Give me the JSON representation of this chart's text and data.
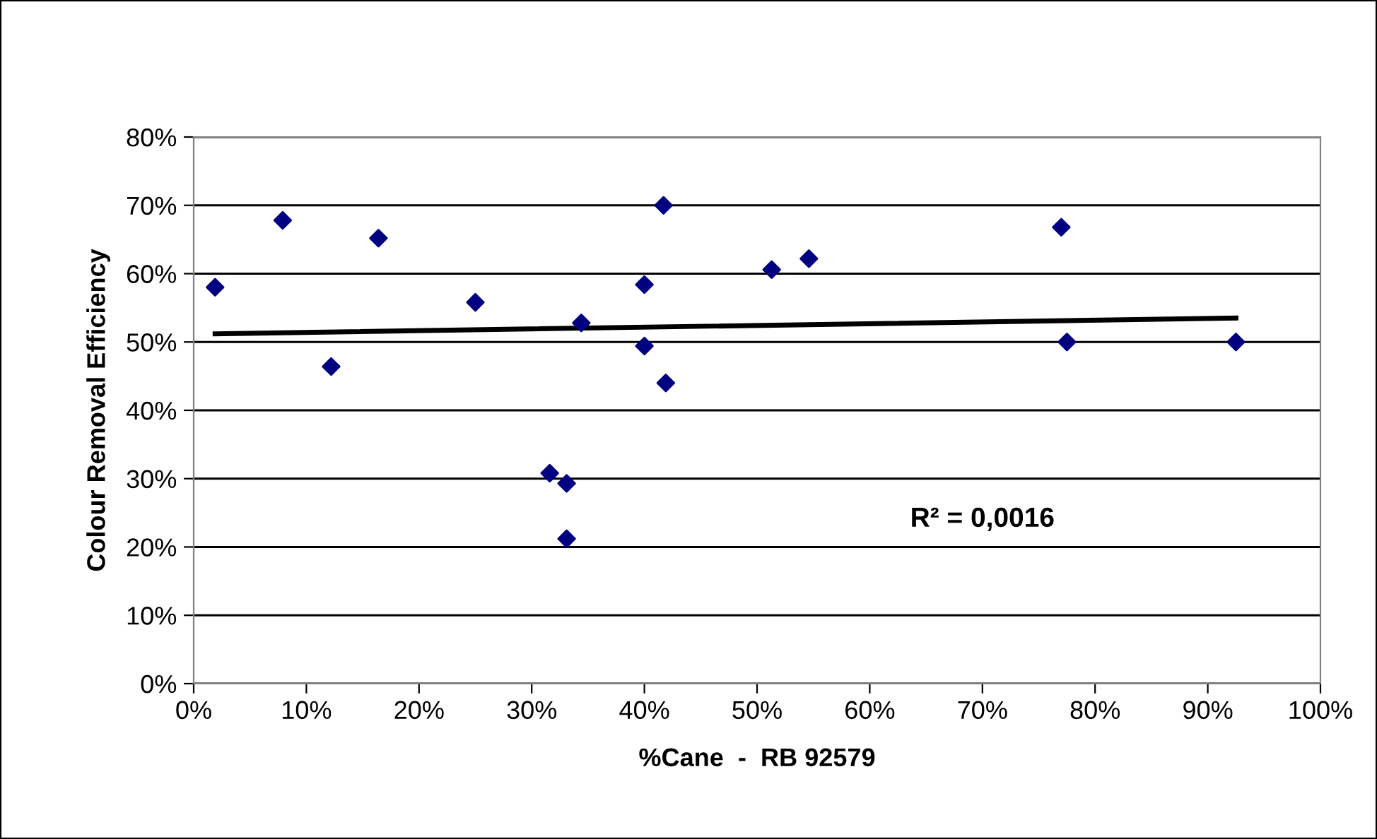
{
  "chart_data": {
    "type": "scatter",
    "xlabel": "%Cane  -  RB 92579",
    "ylabel": "Colour Removal Efficiency",
    "series": [
      {
        "color": "#000080",
        "marker": "diamond",
        "x": [
          1.9,
          7.9,
          12.2,
          16.4,
          25.0,
          31.6,
          33.1,
          33.1,
          34.4,
          40.0,
          40.0,
          41.7,
          41.9,
          51.3,
          54.6,
          77.0,
          77.5,
          92.5
        ],
        "values": [
          58,
          67.8,
          46.4,
          65.2,
          55.8,
          30.8,
          29.3,
          21.2,
          52.8,
          58.4,
          49.4,
          70,
          44,
          60.6,
          62.2,
          66.8,
          50,
          50
        ]
      },
      {
        "type": "line",
        "color": "#000000",
        "marker": "none",
        "line_style": "solid",
        "x": [
          1.9,
          92.5
        ],
        "values": [
          51.2,
          53.5
        ]
      }
    ],
    "annotations": [
      "R² = 0,0016"
    ],
    "xlim": [
      0,
      100
    ],
    "ylim": [
      0,
      80
    ],
    "xticks": [
      {
        "value": 0,
        "label": "0%"
      },
      {
        "value": 10,
        "label": "10%"
      },
      {
        "value": 20,
        "label": "20%"
      },
      {
        "value": 30,
        "label": "30%"
      },
      {
        "value": 40,
        "label": "40%"
      },
      {
        "value": 50,
        "label": "50%"
      },
      {
        "value": 60,
        "label": "60%"
      },
      {
        "value": 70,
        "label": "70%"
      },
      {
        "value": 80,
        "label": "80%"
      },
      {
        "value": 90,
        "label": "90%"
      },
      {
        "value": 100,
        "label": "100%"
      }
    ],
    "yticks": [
      {
        "value": 0,
        "label": "0%"
      },
      {
        "value": 10,
        "label": "10%"
      },
      {
        "value": 20,
        "label": "20%"
      },
      {
        "value": 30,
        "label": "30%"
      },
      {
        "value": 40,
        "label": "40%"
      },
      {
        "value": 50,
        "label": "50%"
      },
      {
        "value": 60,
        "label": "60%"
      },
      {
        "value": 70,
        "label": "70%"
      },
      {
        "value": 80,
        "label": "80%"
      }
    ],
    "grid": "y",
    "legend": false
  }
}
